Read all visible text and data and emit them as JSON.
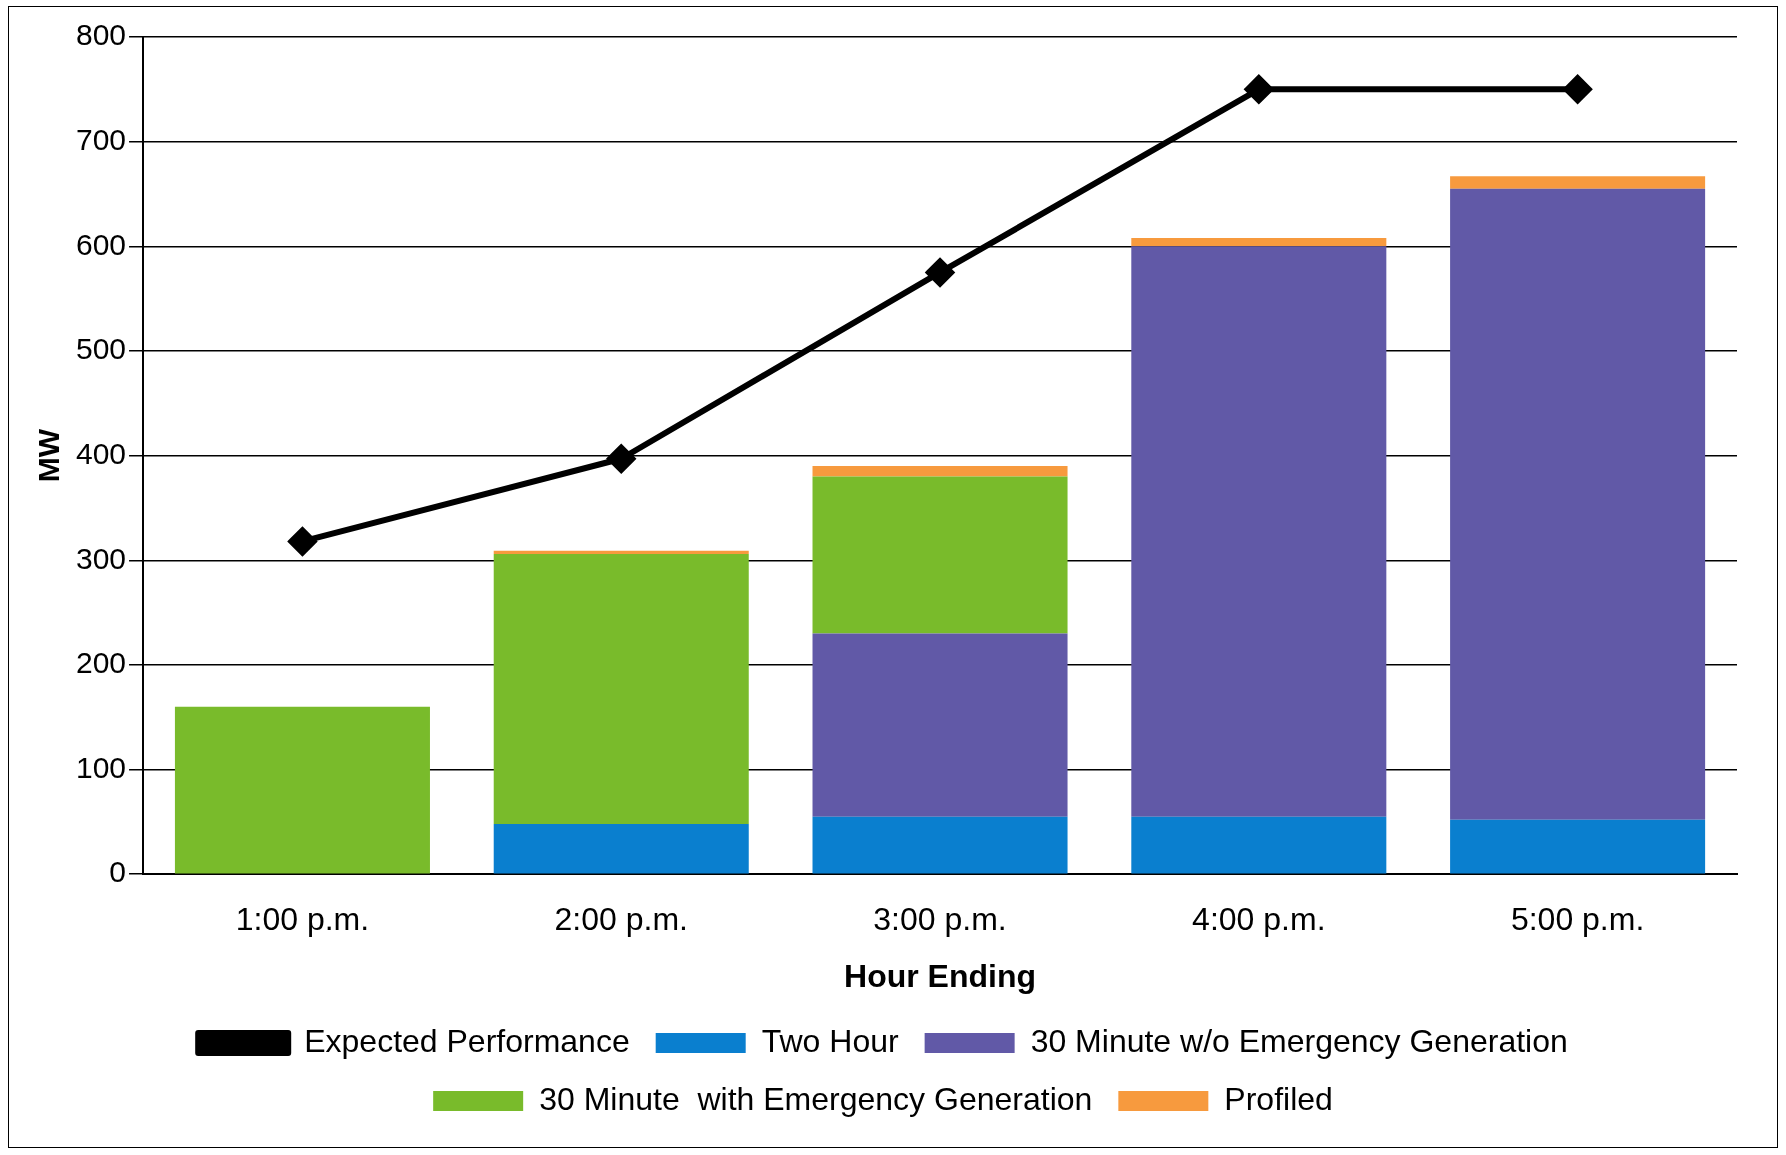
{
  "chart_data": {
    "type": "bar",
    "stacked": true,
    "xlabel": "Hour Ending",
    "ylabel": "MW",
    "categories": [
      "1:00 p.m.",
      "2:00 p.m.",
      "3:00 p.m.",
      "4:00 p.m.",
      "5:00 p.m."
    ],
    "series": [
      {
        "name": "Two Hour",
        "color": "#0a7fcf",
        "values": [
          null,
          48,
          55,
          55,
          52
        ]
      },
      {
        "name": "30 Minute w/o Emergency Generation",
        "color": "#6159a7",
        "values": [
          null,
          null,
          175,
          545,
          603
        ]
      },
      {
        "name": "30 Minute  with Emergency Generation",
        "color": "#79bb2b",
        "values": [
          160,
          258,
          150,
          null,
          null
        ]
      },
      {
        "name": "Profiled",
        "color": "#f79a3e",
        "values": [
          null,
          3,
          10,
          8,
          12
        ]
      },
      {
        "name": "Expected Performance",
        "type": "line",
        "color": "#000000",
        "values": [
          318,
          397,
          575,
          750,
          750
        ]
      }
    ],
    "ylim": [
      0,
      800
    ],
    "yticks": [
      0,
      100,
      200,
      300,
      400,
      500,
      600,
      700,
      800
    ],
    "grid": "y",
    "legend": "bottom",
    "marker": "diamond"
  }
}
